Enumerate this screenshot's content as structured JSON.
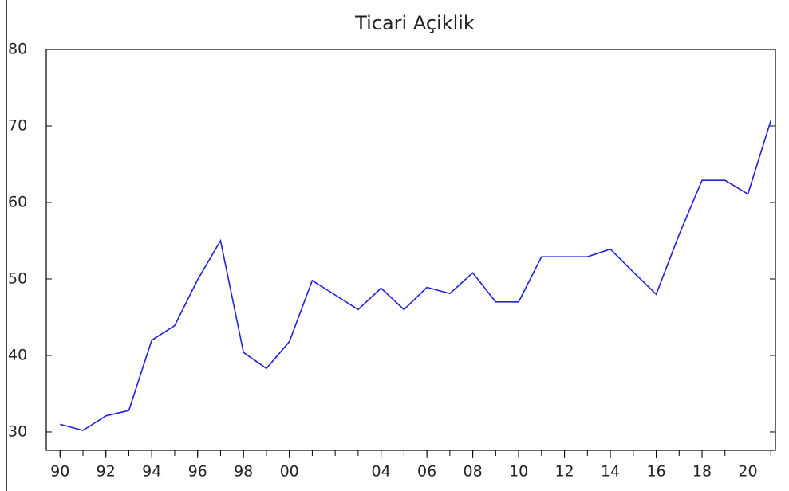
{
  "chart_data": {
    "type": "line",
    "title": "Ticari Açiklik",
    "x": [
      1990,
      1991,
      1992,
      1993,
      1994,
      1995,
      1996,
      1997,
      1998,
      1999,
      2000,
      2001,
      2002,
      2003,
      2004,
      2005,
      2006,
      2007,
      2008,
      2009,
      2010,
      2011,
      2012,
      2013,
      2014,
      2015,
      2016,
      2017,
      2018,
      2019,
      2020,
      2021
    ],
    "series": [
      {
        "color": "#2020e0",
        "values": [
          31.0,
          30.2,
          32.1,
          32.8,
          42.0,
          43.9,
          49.9,
          55.0,
          40.4,
          38.3,
          41.8,
          49.8,
          47.9,
          46.0,
          48.8,
          46.0,
          48.9,
          48.1,
          50.8,
          47.0,
          47.0,
          52.9,
          52.9,
          52.9,
          53.9,
          50.9,
          48.0,
          55.8,
          62.9,
          62.9,
          61.1,
          70.7
        ]
      }
    ],
    "xlim": [
      1989.4,
      2021.2
    ],
    "xticks": [
      {
        "value": 1990,
        "label": "90"
      },
      {
        "value": 1992,
        "label": "92"
      },
      {
        "value": 1994,
        "label": "94"
      },
      {
        "value": 1996,
        "label": "96"
      },
      {
        "value": 1998,
        "label": "98"
      },
      {
        "value": 2000,
        "label": "00"
      },
      {
        "value": 2004,
        "label": "04"
      },
      {
        "value": 2006,
        "label": "06"
      },
      {
        "value": 2008,
        "label": "08"
      },
      {
        "value": 2010,
        "label": "10"
      },
      {
        "value": 2012,
        "label": "12"
      },
      {
        "value": 2014,
        "label": "14"
      },
      {
        "value": 2016,
        "label": "16"
      },
      {
        "value": 2018,
        "label": "18"
      },
      {
        "value": 2020,
        "label": "20"
      }
    ],
    "ylim": [
      27.6,
      80
    ],
    "yticks": [
      30,
      40,
      50,
      60,
      70,
      80
    ]
  }
}
